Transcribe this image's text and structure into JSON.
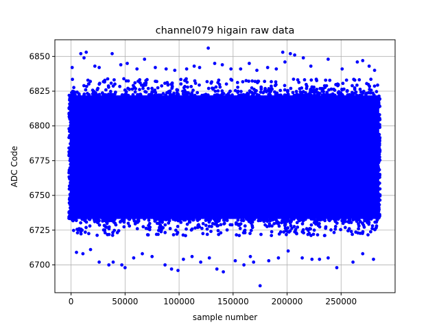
{
  "chart_data": {
    "type": "scatter",
    "title": "channel079 higain raw data",
    "xlabel": "sample number",
    "ylabel": "ADC Code",
    "xlim": [
      -15000,
      300000
    ],
    "ylim": [
      6680,
      6862
    ],
    "xticks": [
      0,
      50000,
      100000,
      150000,
      200000,
      250000
    ],
    "xtick_labels": [
      "0",
      "50000",
      "100000",
      "150000",
      "200000",
      "250000"
    ],
    "yticks": [
      6700,
      6725,
      6750,
      6775,
      6800,
      6825,
      6850
    ],
    "ytick_labels": [
      "6700",
      "6725",
      "6750",
      "6775",
      "6800",
      "6825",
      "6850"
    ],
    "grid": true,
    "marker_color": "#0000ff",
    "series": [
      {
        "core": {
          "x_range": [
            0,
            284000
          ],
          "y_range": [
            6733,
            6822
          ]
        },
        "outliers": [
          [
            1000,
            6842
          ],
          [
            9000,
            6852
          ],
          [
            12000,
            6849
          ],
          [
            14000,
            6853
          ],
          [
            22000,
            6843
          ],
          [
            26000,
            6842
          ],
          [
            38000,
            6852
          ],
          [
            46000,
            6844
          ],
          [
            52000,
            6845
          ],
          [
            61000,
            6841
          ],
          [
            68000,
            6848
          ],
          [
            78000,
            6842
          ],
          [
            88000,
            6841
          ],
          [
            96000,
            6840
          ],
          [
            107000,
            6841
          ],
          [
            114000,
            6843
          ],
          [
            119000,
            6842
          ],
          [
            127000,
            6856
          ],
          [
            133000,
            6845
          ],
          [
            140000,
            6844
          ],
          [
            148000,
            6841
          ],
          [
            157000,
            6841
          ],
          [
            165000,
            6845
          ],
          [
            172000,
            6840
          ],
          [
            182000,
            6842
          ],
          [
            190000,
            6841
          ],
          [
            196000,
            6853
          ],
          [
            198000,
            6846
          ],
          [
            203000,
            6852
          ],
          [
            207000,
            6851
          ],
          [
            215000,
            6849
          ],
          [
            222000,
            6843
          ],
          [
            238000,
            6848
          ],
          [
            251000,
            6841
          ],
          [
            265000,
            6846
          ],
          [
            270000,
            6847
          ],
          [
            276000,
            6843
          ],
          [
            281000,
            6840
          ],
          [
            5000,
            6709
          ],
          [
            11000,
            6708
          ],
          [
            18000,
            6711
          ],
          [
            26000,
            6702
          ],
          [
            35000,
            6700
          ],
          [
            39000,
            6702
          ],
          [
            47000,
            6700
          ],
          [
            50000,
            6698
          ],
          [
            58000,
            6705
          ],
          [
            66000,
            6708
          ],
          [
            75000,
            6706
          ],
          [
            87000,
            6700
          ],
          [
            93000,
            6697
          ],
          [
            99000,
            6696
          ],
          [
            104000,
            6704
          ],
          [
            112000,
            6706
          ],
          [
            120000,
            6702
          ],
          [
            128000,
            6705
          ],
          [
            135000,
            6697
          ],
          [
            141000,
            6695
          ],
          [
            152000,
            6703
          ],
          [
            160000,
            6700
          ],
          [
            166000,
            6706
          ],
          [
            169000,
            6702
          ],
          [
            175000,
            6685
          ],
          [
            183000,
            6703
          ],
          [
            192000,
            6705
          ],
          [
            201000,
            6710
          ],
          [
            214000,
            6705
          ],
          [
            223000,
            6704
          ],
          [
            230000,
            6704
          ],
          [
            238000,
            6705
          ],
          [
            246000,
            6698
          ],
          [
            261000,
            6702
          ],
          [
            270000,
            6708
          ],
          [
            280000,
            6704
          ]
        ]
      }
    ]
  }
}
